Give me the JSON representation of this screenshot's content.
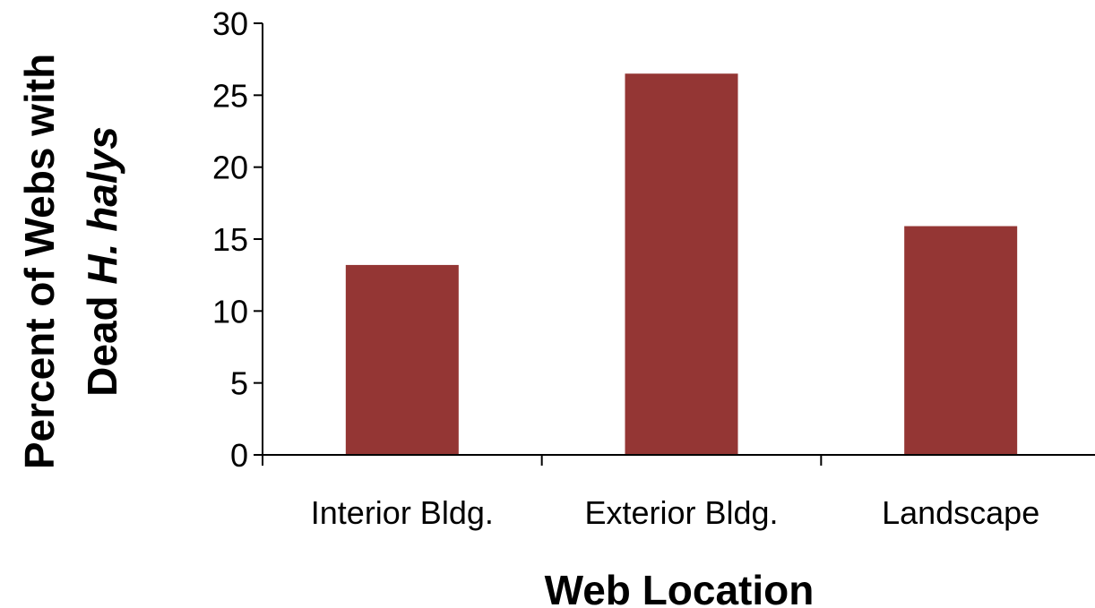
{
  "chart_data": {
    "type": "bar",
    "categories": [
      "Interior Bldg.",
      "Exterior Bldg.",
      "Landscape"
    ],
    "values": [
      13.2,
      26.5,
      15.9
    ],
    "title": "",
    "xlabel": "Web Location",
    "ylabel": {
      "line1": "Percent of Webs with",
      "line2_prefix": "Dead ",
      "line2_italic": "H. halys"
    },
    "ylim": [
      0,
      30
    ],
    "yticks": [
      "0",
      "5",
      "10",
      "15",
      "20",
      "25",
      "30"
    ],
    "grid": false,
    "legend": "none",
    "bar_color": "#943634",
    "axis_color": "#000000"
  }
}
